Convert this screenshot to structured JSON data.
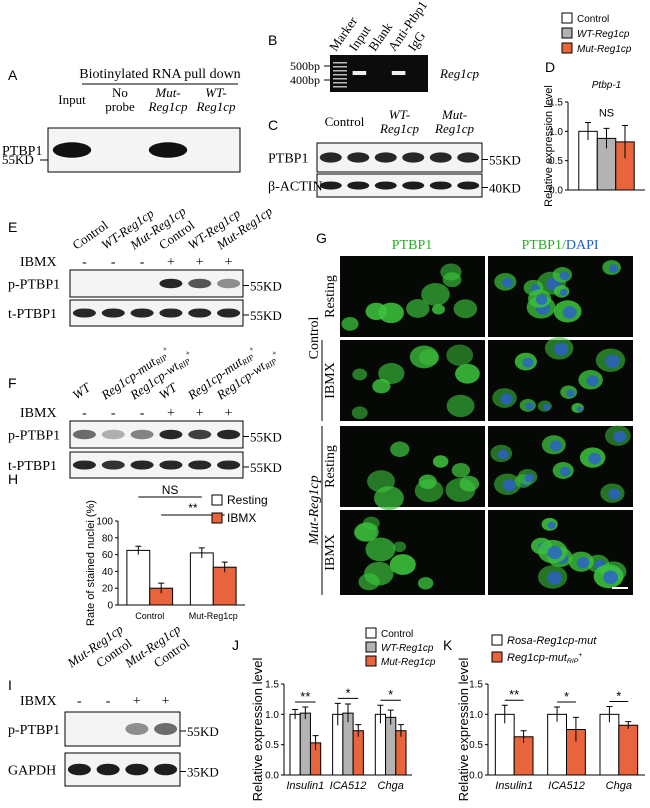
{
  "A": {
    "label": "A",
    "title": "Biotinylated RNA pull down",
    "lanes": [
      "Input",
      [
        "No",
        "probe"
      ],
      [
        "Mut-",
        "Reg1cp"
      ],
      [
        "WT-",
        "Reg1cp"
      ]
    ],
    "rows": [
      "PTBP1"
    ],
    "markers": [
      "55KD"
    ]
  },
  "B": {
    "label": "B",
    "lanes": [
      "Marker",
      "Input",
      "Blank",
      "Anti-Ptbp1",
      "IgG"
    ],
    "markers": [
      "500bp",
      "400bp"
    ],
    "gene": "Reg1cp"
  },
  "C": {
    "label": "C",
    "lanes": [
      "Control",
      [
        "WT-",
        "Reg1cp"
      ],
      [
        "Mut-",
        "Reg1cp"
      ]
    ],
    "rows": [
      "PTBP1",
      "β-ACTIN"
    ],
    "markers": [
      "55KD",
      "40KD"
    ]
  },
  "D": {
    "label": "D",
    "chart": {
      "type": "bar",
      "title": "Ptbp-1",
      "y_label": "Relative expression level",
      "series": [
        {
          "name": "Control",
          "color": "#ffffff",
          "values": [
            1.0
          ],
          "errors": [
            0.15
          ]
        },
        {
          "name": "WT-Reg1cp",
          "color": "#b3b3b3",
          "values": [
            0.88
          ],
          "errors": [
            0.17
          ]
        },
        {
          "name": "Mut-Reg1cp",
          "color": "#e8643c",
          "values": [
            0.82
          ],
          "errors": [
            0.28
          ]
        }
      ],
      "ylim": [
        0,
        1.5
      ],
      "yticks": [
        {
          "value": 0,
          "label": "0.0"
        },
        {
          "value": 0.5,
          "label": "0.5"
        },
        {
          "value": 1,
          "label": "1.0"
        },
        {
          "value": 1.5,
          "label": "1.5"
        }
      ],
      "annotations": [
        "NS"
      ]
    }
  },
  "E": {
    "label": "E",
    "lanes": [
      "Control",
      "WT-Reg1cp",
      "Mut-Reg1cp",
      "Control",
      "WT-Reg1cp",
      "Mut-Reg1cp"
    ],
    "treatment": "IBMX",
    "signs": [
      "-",
      "-",
      "-",
      "+",
      "+",
      "+"
    ],
    "rows": [
      "p-PTBP1",
      "t-PTBP1"
    ],
    "markers": [
      "55KD",
      "55KD"
    ]
  },
  "F": {
    "label": "F",
    "lanes": [
      "WT",
      {
        "text": "Reg1cp-mut",
        "sub": "RIP",
        "sup": "+"
      },
      {
        "text": "Reg1cp-wt",
        "sub": "RIP",
        "sup": "+"
      },
      "WT",
      {
        "text": "Reg1cp-mut",
        "sub": "RIP",
        "sup": "+"
      },
      {
        "text": "Reg1cp-wt",
        "sub": "RIP",
        "sup": "+"
      }
    ],
    "treatment": "IBMX",
    "signs": [
      "-",
      "-",
      "-",
      "+",
      "+",
      "+"
    ],
    "rows": [
      "p-PTBP1",
      "t-PTBP1"
    ],
    "markers": [
      "55KD",
      "55KD"
    ]
  },
  "G": {
    "label": "G",
    "columns": [
      [
        "PTBP1"
      ],
      [
        "PTBP1/",
        "DAPI"
      ]
    ],
    "groups": [
      "Control",
      "Mut-Reg1cp"
    ],
    "conditions": [
      "Resting",
      "IBMX",
      "Resting",
      "IBMX"
    ]
  },
  "H": {
    "label": "H",
    "chart": {
      "type": "bar",
      "y_label": "Rate of stained nuclei (%)",
      "categories": [
        "Control",
        "Mut-Reg1cp"
      ],
      "series": [
        {
          "name": "Resting",
          "color": "#ffffff",
          "values": [
            65,
            62
          ],
          "errors": [
            5,
            6
          ]
        },
        {
          "name": "IBMX",
          "color": "#e8643c",
          "values": [
            20,
            45
          ],
          "errors": [
            6,
            6
          ]
        }
      ],
      "ylim": [
        0,
        100
      ],
      "yticks": [
        0,
        20,
        40,
        60,
        80,
        100
      ],
      "annotations": [
        "NS",
        "**"
      ]
    }
  },
  "I": {
    "label": "I",
    "lanes": [
      "Mut-Reg1cp",
      "Control",
      "Mut-Reg1cp",
      "Control"
    ],
    "treatment": "IBMX",
    "signs": [
      "-",
      "-",
      "+",
      "+"
    ],
    "rows": [
      "p-PTBP1",
      "GAPDH"
    ],
    "markers": [
      "55KD",
      "35KD"
    ]
  },
  "J": {
    "label": "J",
    "chart": {
      "type": "bar",
      "y_label": "Relative expression level",
      "categories": [
        "Insulin1",
        "ICA512",
        "Chga"
      ],
      "series": [
        {
          "name": "Control",
          "color": "#ffffff",
          "values": [
            1.0,
            1.0,
            1.0
          ],
          "errors": [
            0.08,
            0.18,
            0.15
          ]
        },
        {
          "name": "WT-Reg1cp",
          "color": "#b3b3b3",
          "values": [
            1.02,
            1.02,
            0.95
          ],
          "errors": [
            0.1,
            0.15,
            0.12
          ]
        },
        {
          "name": "Mut-Reg1cp",
          "color": "#e8643c",
          "values": [
            0.53,
            0.73,
            0.73
          ],
          "errors": [
            0.12,
            0.1,
            0.1
          ]
        }
      ],
      "ylim": [
        0,
        1.5
      ],
      "yticks": [
        {
          "value": 0,
          "label": "0.0"
        },
        {
          "value": 0.5,
          "label": "0.5"
        },
        {
          "value": 1,
          "label": "1.0"
        },
        {
          "value": 1.5,
          "label": "1.5"
        }
      ],
      "annotations": [
        "**",
        "*",
        "*"
      ]
    }
  },
  "K": {
    "label": "K",
    "chart": {
      "type": "bar",
      "y_label": "Relative expression level",
      "categories": [
        "Insulin1",
        "ICA512",
        "Chga"
      ],
      "series": [
        {
          "name": "Rosa-Reg1cp-mut",
          "color": "#ffffff",
          "values": [
            1.0,
            1.0,
            1.0
          ],
          "errors": [
            0.15,
            0.12,
            0.13
          ]
        },
        {
          "name": {
            "text": "Reg1cp-mut",
            "sub": "RIP",
            "sup": "+"
          },
          "color": "#e8643c",
          "values": [
            0.63,
            0.75,
            0.82
          ],
          "errors": [
            0.1,
            0.2,
            0.06
          ]
        }
      ],
      "ylim": [
        0,
        1.5
      ],
      "yticks": [
        {
          "value": 0,
          "label": "0.0"
        },
        {
          "value": 0.5,
          "label": "0.5"
        },
        {
          "value": 1,
          "label": "1.0"
        },
        {
          "value": 1.5,
          "label": "1.5"
        }
      ],
      "annotations": [
        "**",
        "*",
        "*"
      ]
    }
  }
}
